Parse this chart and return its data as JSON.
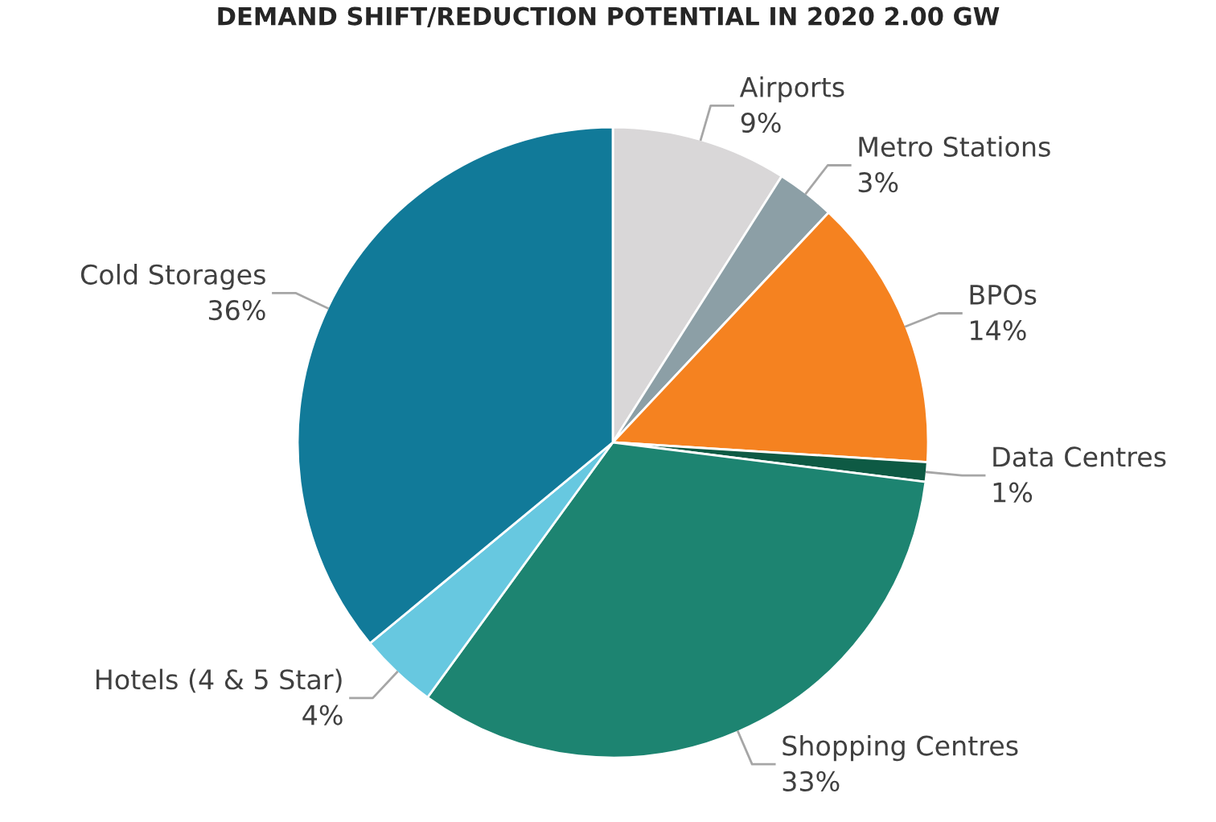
{
  "chart_data": {
    "type": "pie",
    "title": "DEMAND SHIFT/REDUCTION POTENTIAL IN 2020 2.00 GW",
    "categories": [
      "Airports",
      "Metro Stations",
      "BPOs",
      "Data Centres",
      "Shopping Centres",
      "Hotels (4 & 5 Star)",
      "Cold Storages"
    ],
    "values": [
      9,
      3,
      14,
      1,
      33,
      4,
      36
    ],
    "value_labels": [
      "9%",
      "3%",
      "14%",
      "1%",
      "33%",
      "4%",
      "36%"
    ],
    "colors": [
      "#d9d7d8",
      "#8c9fa6",
      "#f58220",
      "#0e5a44",
      "#1d8471",
      "#67c8e0",
      "#117a99"
    ],
    "legend": false
  }
}
